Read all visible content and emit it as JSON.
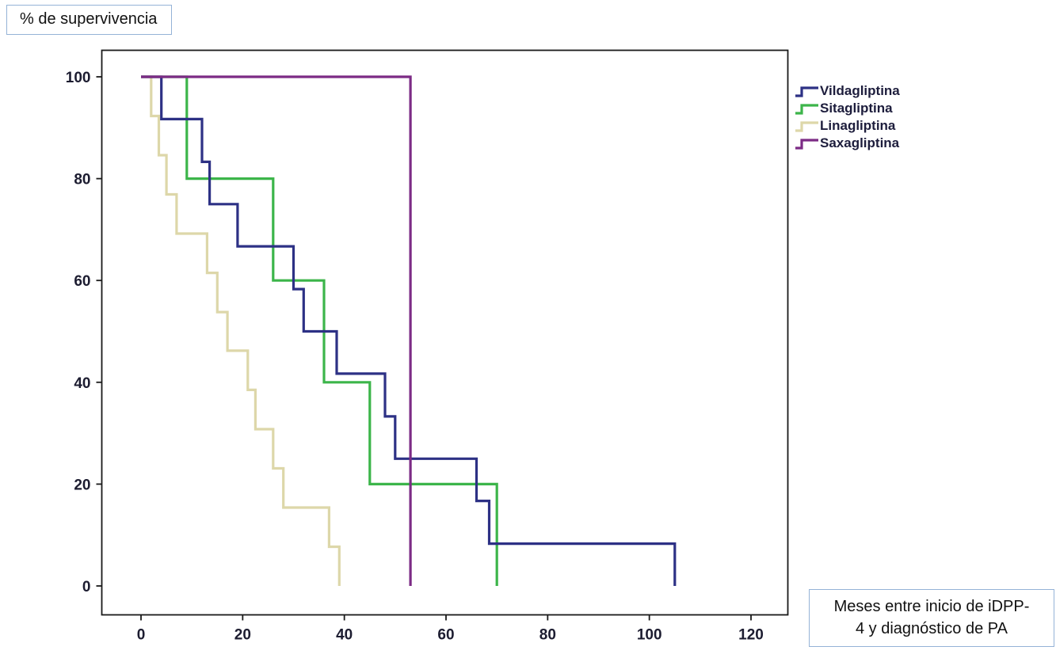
{
  "page": {
    "background": "#ffffff"
  },
  "styles": {
    "box_border": "#95b3d7",
    "axis_color": "#1a1a1a",
    "tick_label_color": "#1c1c30"
  },
  "y_axis_title_box": {
    "text": "% de supervivencia"
  },
  "x_axis_title_box": {
    "lines": [
      "Meses entre inicio de iDPP-",
      "4 y diagnóstico de PA"
    ]
  },
  "chart_data": {
    "type": "line",
    "subtype": "kaplan-meier-step",
    "title": "",
    "xlabel": "Meses entre inicio de iDPP-4 y diagnóstico de PA",
    "ylabel": "% de supervivencia",
    "xlim": [
      0,
      120
    ],
    "ylim": [
      0,
      100
    ],
    "x_ticks": [
      0,
      20,
      40,
      60,
      80,
      100,
      120
    ],
    "y_ticks": [
      0,
      20,
      40,
      60,
      80,
      100
    ],
    "grid": false,
    "legend_position": "right-top",
    "draw_order": [
      "Linagliptina",
      "Sitagliptina",
      "Vildagliptina",
      "Saxagliptina"
    ],
    "series": [
      {
        "name": "Vildagliptina",
        "color": "#2d3185",
        "points": [
          [
            0,
            100
          ],
          [
            4,
            100
          ],
          [
            4,
            91.7
          ],
          [
            12,
            91.7
          ],
          [
            12,
            83.3
          ],
          [
            13.5,
            83.3
          ],
          [
            13.5,
            75
          ],
          [
            19,
            75
          ],
          [
            19,
            66.7
          ],
          [
            30,
            66.7
          ],
          [
            30,
            58.3
          ],
          [
            32,
            58.3
          ],
          [
            32,
            50
          ],
          [
            38.5,
            50
          ],
          [
            38.5,
            41.7
          ],
          [
            48,
            41.7
          ],
          [
            48,
            33.3
          ],
          [
            50,
            33.3
          ],
          [
            50,
            25
          ],
          [
            66,
            25
          ],
          [
            66,
            16.7
          ],
          [
            68.5,
            16.7
          ],
          [
            68.5,
            8.3
          ],
          [
            105,
            8.3
          ],
          [
            105,
            0
          ]
        ]
      },
      {
        "name": "Sitagliptina",
        "color": "#3cb54a",
        "points": [
          [
            0,
            100
          ],
          [
            9,
            100
          ],
          [
            9,
            80
          ],
          [
            26,
            80
          ],
          [
            26,
            60
          ],
          [
            36,
            60
          ],
          [
            36,
            40
          ],
          [
            45,
            40
          ],
          [
            45,
            20
          ],
          [
            70,
            20
          ],
          [
            70,
            0
          ]
        ]
      },
      {
        "name": "Linagliptina",
        "color": "#ddd7a9",
        "points": [
          [
            0,
            100
          ],
          [
            2,
            100
          ],
          [
            2,
            92.3
          ],
          [
            3.5,
            92.3
          ],
          [
            3.5,
            84.6
          ],
          [
            5,
            84.6
          ],
          [
            5,
            76.9
          ],
          [
            7,
            76.9
          ],
          [
            7,
            69.2
          ],
          [
            13,
            69.2
          ],
          [
            13,
            61.5
          ],
          [
            15,
            61.5
          ],
          [
            15,
            53.8
          ],
          [
            17,
            53.8
          ],
          [
            17,
            46.2
          ],
          [
            21,
            46.2
          ],
          [
            21,
            38.5
          ],
          [
            22.5,
            38.5
          ],
          [
            22.5,
            30.8
          ],
          [
            26,
            30.8
          ],
          [
            26,
            23.1
          ],
          [
            28,
            23.1
          ],
          [
            28,
            15.4
          ],
          [
            37,
            15.4
          ],
          [
            37,
            7.7
          ],
          [
            39,
            7.7
          ],
          [
            39,
            0
          ]
        ]
      },
      {
        "name": "Saxagliptina",
        "color": "#7c2b85",
        "points": [
          [
            0,
            100
          ],
          [
            53,
            100
          ],
          [
            53,
            0
          ]
        ]
      }
    ]
  }
}
